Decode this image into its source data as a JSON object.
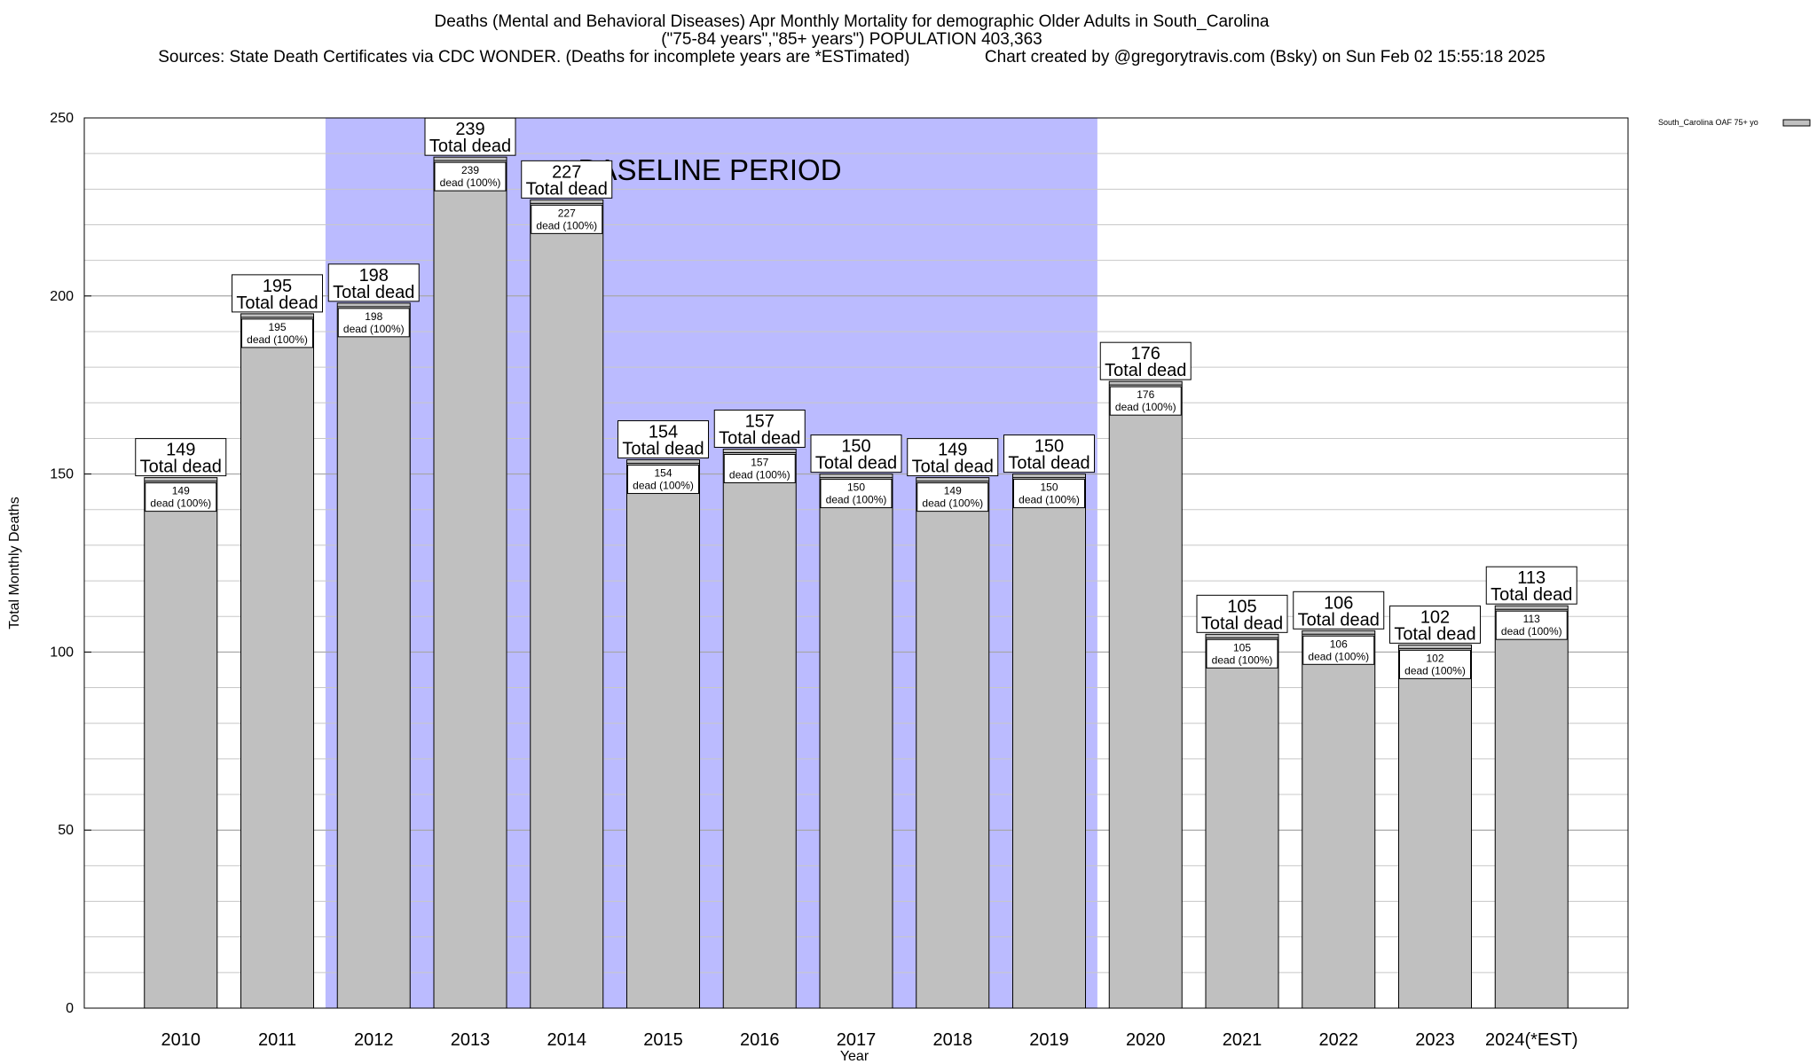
{
  "header": {
    "title_line1": "Deaths (Mental and Behavioral Diseases) Apr Monthly Mortality for demographic Older Adults in South_Carolina",
    "title_line2": "(\"75-84 years\",\"85+ years\") POPULATION 403,363",
    "title_line3": "Sources: State Death Certificates via CDC WONDER. (Deaths for incomplete years are *ESTimated)                Chart created by @gregorytravis.com (Bsky) on Sun Feb 02 15:55:18 2025"
  },
  "chart_data": {
    "type": "bar",
    "xlabel": "Year",
    "ylabel": "Total Monthly Deaths",
    "ylim": [
      0,
      250
    ],
    "yticks": [
      0,
      50,
      100,
      150,
      200,
      250
    ],
    "minor_grid_step": 10,
    "grid": true,
    "categories": [
      "2010",
      "2011",
      "2012",
      "2013",
      "2014",
      "2015",
      "2016",
      "2017",
      "2018",
      "2019",
      "2020",
      "2021",
      "2022",
      "2023",
      "2024(*EST)"
    ],
    "series": [
      {
        "name": "South_Carolina OAF 75+ yo",
        "color": "#c0c0c0",
        "values": [
          149,
          195,
          198,
          239,
          227,
          154,
          157,
          150,
          149,
          150,
          176,
          105,
          106,
          102,
          113
        ]
      }
    ],
    "total_label_text": "Total dead",
    "inner_label_text": "dead (100%)",
    "baseline": {
      "label": "BASELINE PERIOD",
      "start": "2012",
      "end": "2019",
      "color": "#bbbbff"
    },
    "legend_position": "top-right"
  }
}
